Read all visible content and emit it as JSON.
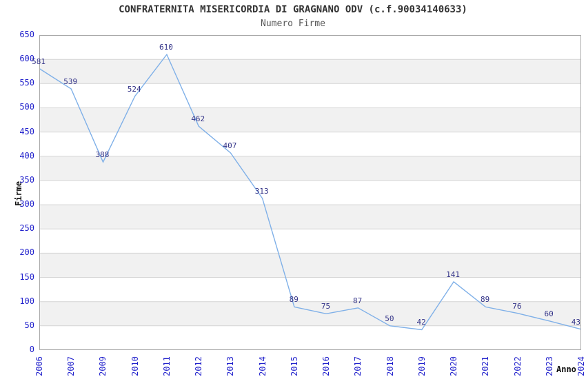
{
  "chart_data": {
    "type": "line",
    "title": "CONFRATERNITA MISERICORDIA DI GRAGNANO ODV (c.f.90034140633)",
    "subtitle": "Numero Firme",
    "xlabel": "Anno",
    "ylabel": "Firme",
    "categories": [
      "2006",
      "2007",
      "2009",
      "2010",
      "2011",
      "2012",
      "2013",
      "2014",
      "2015",
      "2016",
      "2017",
      "2018",
      "2019",
      "2020",
      "2021",
      "2022",
      "2023",
      "2024"
    ],
    "values": [
      581,
      539,
      388,
      524,
      610,
      462,
      407,
      313,
      89,
      75,
      87,
      50,
      42,
      141,
      89,
      76,
      60,
      43
    ],
    "ylim": [
      0,
      650
    ],
    "y_tick_step": 50,
    "grid": true,
    "banded_background": true,
    "legend": "none",
    "point_labels_shown": true,
    "colors": {
      "background": "#ffffff",
      "line": "#7fb0e8",
      "tick_labels": "#2222cc",
      "value_labels": "#333388",
      "title": "#333333",
      "subtitle": "#555555",
      "axis_titles": "#111111",
      "band": "#f1f1f1",
      "grid": "#d4d4d4",
      "plot_border": "#aaaaaa"
    }
  }
}
